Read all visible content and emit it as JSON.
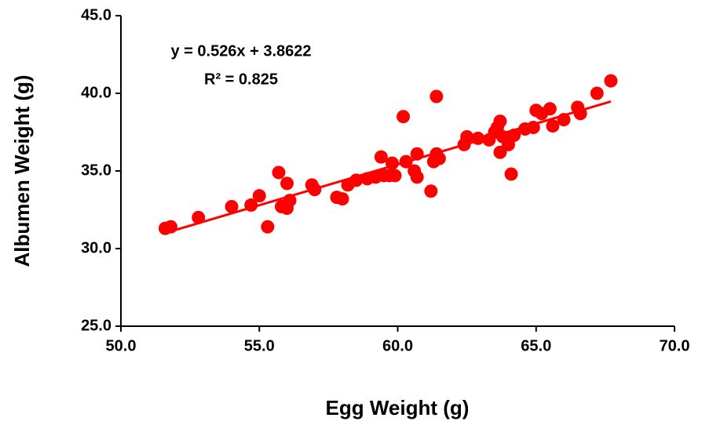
{
  "chart_data": {
    "type": "scatter",
    "x_label": "Egg Weight (g)",
    "y_label": "Albumen Weight (g)",
    "annotations": [
      "y = 0.526x + 3.8622",
      "R² = 0.825"
    ],
    "color": "#ff0000",
    "trendline": {
      "slope": 0.526,
      "intercept": 3.8622
    },
    "x": [
      51.6,
      51.8,
      52.8,
      54.0,
      54.7,
      55.0,
      55.3,
      55.7,
      55.8,
      56.0,
      56.0,
      56.1,
      56.9,
      57.0,
      57.8,
      58.0,
      58.2,
      58.5,
      58.9,
      59.2,
      59.4,
      59.5,
      59.7,
      59.8,
      59.9,
      60.2,
      60.3,
      60.6,
      60.7,
      60.7,
      61.2,
      61.3,
      61.4,
      61.4,
      61.5,
      62.4,
      62.5,
      62.9,
      63.3,
      63.5,
      63.6,
      63.7,
      63.7,
      63.8,
      64.0,
      64.1,
      64.2,
      64.6,
      64.9,
      65.0,
      65.2,
      65.5,
      65.6,
      66.0,
      66.5,
      66.6,
      67.2,
      67.7
    ],
    "values": [
      31.3,
      31.4,
      32.0,
      32.7,
      32.8,
      33.4,
      31.4,
      34.9,
      32.7,
      34.2,
      32.6,
      33.1,
      34.1,
      33.8,
      33.3,
      33.2,
      34.1,
      34.4,
      34.5,
      34.6,
      35.9,
      34.7,
      34.7,
      35.5,
      34.7,
      38.5,
      35.6,
      35.0,
      36.1,
      34.6,
      33.7,
      35.6,
      36.1,
      39.8,
      35.8,
      36.7,
      37.2,
      37.1,
      37.0,
      37.5,
      37.8,
      38.2,
      36.2,
      37.2,
      36.7,
      34.8,
      37.3,
      37.7,
      37.8,
      38.9,
      38.7,
      39.0,
      37.9,
      38.3,
      39.1,
      38.7,
      40.0,
      40.8
    ],
    "xlim": [
      50,
      70
    ],
    "xticks": [
      {
        "value": 50,
        "label": "50.0"
      },
      {
        "value": 55,
        "label": "55.0"
      },
      {
        "value": 60,
        "label": "60.0"
      },
      {
        "value": 65,
        "label": "65.0"
      },
      {
        "value": 70,
        "label": "70.0"
      }
    ],
    "ylim": [
      25,
      45
    ],
    "yticks": [
      {
        "value": 25,
        "label": "25.0"
      },
      {
        "value": 30,
        "label": "30.0"
      },
      {
        "value": 35,
        "label": "35.0"
      },
      {
        "value": 40,
        "label": "40.0"
      },
      {
        "value": 45,
        "label": "45.0"
      }
    ],
    "grid": false
  }
}
